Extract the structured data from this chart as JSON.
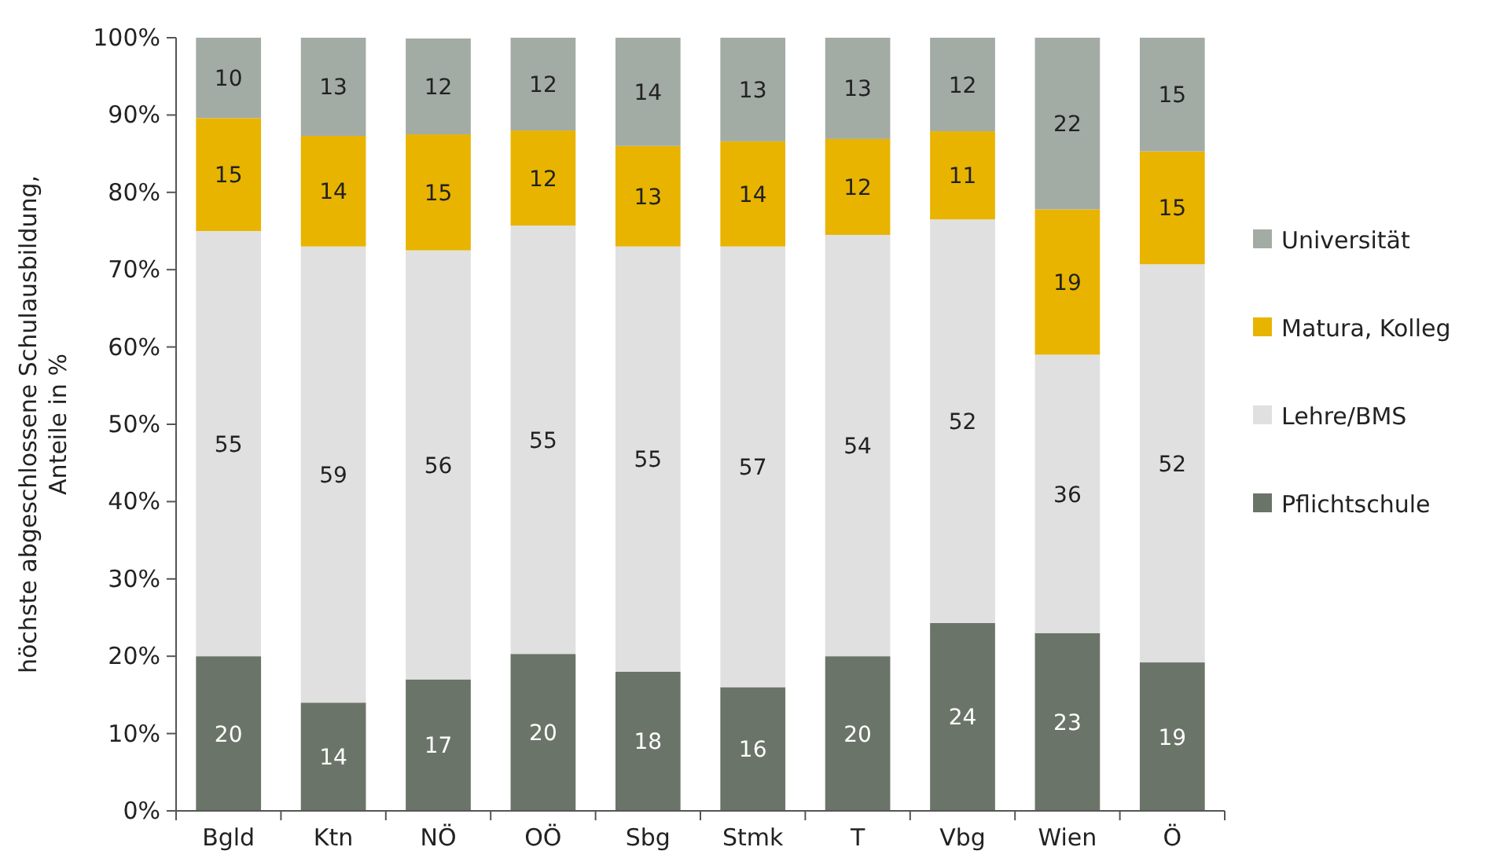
{
  "chart_data": {
    "type": "bar",
    "stacked": true,
    "ylabel": "höchste abgeschlossene Schulausbildung,\nAnteile in %",
    "categories": [
      "Bgld",
      "Ktn",
      "NÖ",
      "OÖ",
      "Sbg",
      "Stmk",
      "T",
      "Vbg",
      "Wien",
      "Ö"
    ],
    "series": [
      {
        "name": "Pflichtschule",
        "color": "#6b7468",
        "values": [
          20,
          14,
          17,
          20.3,
          18,
          16,
          20,
          24.3,
          23,
          19.2
        ],
        "value_labels": [
          "20",
          "14",
          "17",
          "20",
          "18",
          "16",
          "20",
          "24",
          "23",
          "19"
        ]
      },
      {
        "name": "Lehre/BMS",
        "color": "#e0e0e0",
        "values": [
          55,
          59,
          55.5,
          55.4,
          55,
          57,
          54.5,
          52.2,
          36,
          51.5
        ],
        "value_labels": [
          "55",
          "59",
          "56",
          "55",
          "55",
          "57",
          "54",
          "52",
          "36",
          "52"
        ]
      },
      {
        "name": "Matura, Kolleg",
        "color": "#e8b400",
        "values": [
          14.6,
          14.3,
          15,
          12.3,
          13,
          13.6,
          12.4,
          11.4,
          18.8,
          14.6
        ],
        "value_labels": [
          "15",
          "14",
          "15",
          "12",
          "13",
          "14",
          "12",
          "11",
          "19",
          "15"
        ]
      },
      {
        "name": "Universität",
        "color": "#a3aba5",
        "values": [
          10.4,
          12.7,
          12.4,
          12,
          14,
          13.4,
          13.1,
          12.1,
          22.2,
          14.7
        ],
        "value_labels": [
          "10",
          "13",
          "12",
          "12",
          "14",
          "13",
          "13",
          "12",
          "22",
          "15"
        ]
      }
    ],
    "ylim": [
      0,
      100
    ],
    "yticks": [
      {
        "value": 0,
        "label": "0%"
      },
      {
        "value": 10,
        "label": "10%"
      },
      {
        "value": 20,
        "label": "20%"
      },
      {
        "value": 30,
        "label": "30%"
      },
      {
        "value": 40,
        "label": "40%"
      },
      {
        "value": 50,
        "label": "50%"
      },
      {
        "value": 60,
        "label": "60%"
      },
      {
        "value": 70,
        "label": "70%"
      },
      {
        "value": 80,
        "label": "80%"
      },
      {
        "value": 90,
        "label": "90%"
      },
      {
        "value": 100,
        "label": "100%"
      }
    ],
    "legend": "right",
    "grid": false
  }
}
